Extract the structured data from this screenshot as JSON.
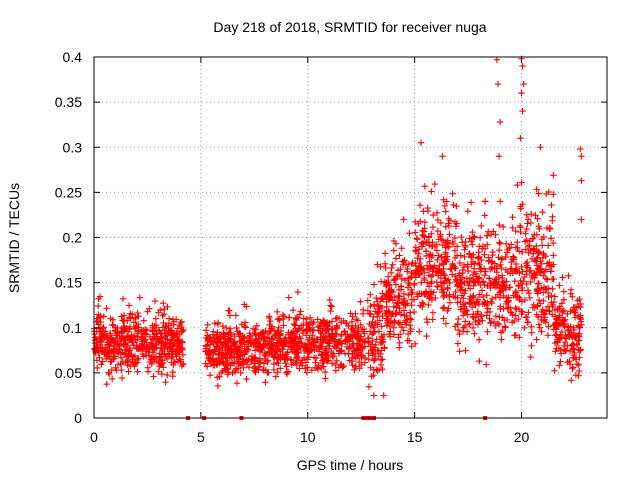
{
  "chart_data": {
    "type": "scatter",
    "title": "Day 218 of 2018, SRMTID for receiver nuga",
    "xlabel": "GPS time / hours",
    "ylabel": "SRMTID / TECUs",
    "xlim": [
      0,
      24
    ],
    "ylim": [
      0,
      0.4
    ],
    "xticks": [
      0,
      5,
      10,
      15,
      20
    ],
    "xtick_labels": [
      "0",
      "5",
      "10",
      "15",
      "20"
    ],
    "yticks": [
      0,
      0.05,
      0.1,
      0.15,
      0.2,
      0.25,
      0.3,
      0.35,
      0.4
    ],
    "ytick_labels": [
      "0",
      "0.05",
      "0.1",
      "0.15",
      "0.2",
      "0.25",
      "0.3",
      "0.35",
      "0.4"
    ],
    "grid": true,
    "marker": "+",
    "color": "#ff0000",
    "series": [
      {
        "name": "SRMTID",
        "segments": [
          {
            "x_start": 0.0,
            "x_end": 4.2,
            "base": 0.082,
            "spread": 0.022,
            "min": 0.025,
            "max": 0.16
          },
          {
            "x_start": 5.2,
            "x_end": 8.0,
            "base": 0.075,
            "spread": 0.02,
            "min": 0.015,
            "max": 0.14
          },
          {
            "x_start": 8.0,
            "x_end": 12.7,
            "base": 0.082,
            "spread": 0.022,
            "min": 0.03,
            "max": 0.15
          },
          {
            "x_start": 12.8,
            "x_end": 13.6,
            "base": 0.09,
            "spread": 0.04,
            "min": 0.025,
            "max": 0.17
          },
          {
            "x_start": 13.6,
            "x_end": 15.0,
            "base": 0.13,
            "spread": 0.035,
            "min": 0.05,
            "max": 0.22
          },
          {
            "x_start": 15.0,
            "x_end": 17.0,
            "base": 0.17,
            "spread": 0.045,
            "min": 0.06,
            "max": 0.31
          },
          {
            "x_start": 17.0,
            "x_end": 19.5,
            "base": 0.145,
            "spread": 0.045,
            "min": 0.03,
            "max": 0.24
          },
          {
            "x_start": 19.5,
            "x_end": 21.5,
            "base": 0.16,
            "spread": 0.05,
            "min": 0.05,
            "max": 0.3
          },
          {
            "x_start": 21.5,
            "x_end": 22.8,
            "base": 0.095,
            "spread": 0.03,
            "min": 0.04,
            "max": 0.17
          }
        ],
        "outliers": [
          {
            "x": 18.85,
            "y": 0.397
          },
          {
            "x": 18.9,
            "y": 0.37
          },
          {
            "x": 19.0,
            "y": 0.328
          },
          {
            "x": 18.95,
            "y": 0.29
          },
          {
            "x": 20.0,
            "y": 0.398
          },
          {
            "x": 20.05,
            "y": 0.39
          },
          {
            "x": 20.1,
            "y": 0.37
          },
          {
            "x": 20.0,
            "y": 0.36
          },
          {
            "x": 20.05,
            "y": 0.34
          },
          {
            "x": 19.95,
            "y": 0.31
          },
          {
            "x": 22.75,
            "y": 0.298
          },
          {
            "x": 22.8,
            "y": 0.29
          },
          {
            "x": 22.8,
            "y": 0.263
          },
          {
            "x": 22.8,
            "y": 0.22
          },
          {
            "x": 15.3,
            "y": 0.305
          },
          {
            "x": 16.3,
            "y": 0.29
          }
        ],
        "zero_points": [
          4.4,
          5.15,
          6.9,
          12.6,
          12.7,
          12.8,
          12.9,
          13.1,
          18.3
        ]
      }
    ]
  }
}
